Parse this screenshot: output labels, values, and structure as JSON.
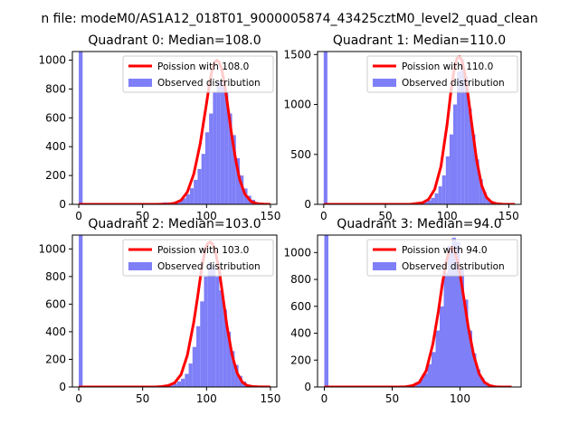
{
  "suptitle": "n file: modeM0/AS1A12_018T01_9000005874_43425cztM0_level2_quad_clean",
  "colors": {
    "fit": "#ff0000",
    "observed": "#7f7ff8",
    "axis": "#000000",
    "background": "#ffffff"
  },
  "chart_data": [
    {
      "type": "bar",
      "title": "Quadrant 0: Median=108.0",
      "xlim": [
        -5,
        155
      ],
      "ylim": [
        0,
        1060
      ],
      "xticks": [
        "0",
        "50",
        "100",
        "150"
      ],
      "xtick_values": [
        0,
        50,
        100,
        150
      ],
      "yticks": [
        "0",
        "200",
        "400",
        "600",
        "800",
        "1000"
      ],
      "ytick_values": [
        0,
        200,
        400,
        600,
        800,
        1000
      ],
      "legend": {
        "location": "upper right",
        "entries": [
          "Poission with 108.0",
          "Observed distribution"
        ]
      },
      "histogram": {
        "bins": [
          [
            0,
            3,
            1060
          ],
          [
            60,
            63,
            6
          ],
          [
            63,
            66,
            10
          ],
          [
            66,
            69,
            14
          ],
          [
            69,
            72,
            13
          ],
          [
            72,
            75,
            10
          ],
          [
            75,
            78,
            20
          ],
          [
            78,
            81,
            30
          ],
          [
            81,
            84,
            42
          ],
          [
            84,
            87,
            70
          ],
          [
            87,
            90,
            112
          ],
          [
            90,
            93,
            170
          ],
          [
            93,
            96,
            245
          ],
          [
            96,
            99,
            350
          ],
          [
            99,
            102,
            500
          ],
          [
            102,
            105,
            630
          ],
          [
            105,
            108,
            780
          ],
          [
            108,
            111,
            850
          ],
          [
            111,
            114,
            850
          ],
          [
            114,
            117,
            780
          ],
          [
            117,
            120,
            630
          ],
          [
            120,
            123,
            480
          ],
          [
            123,
            126,
            320
          ],
          [
            126,
            129,
            200
          ],
          [
            129,
            132,
            110
          ],
          [
            132,
            135,
            60
          ],
          [
            135,
            138,
            32
          ],
          [
            138,
            141,
            16
          ],
          [
            141,
            144,
            10
          ],
          [
            144,
            147,
            5
          ],
          [
            147,
            150,
            2
          ]
        ]
      },
      "fit_curve": {
        "median": 108.0,
        "x": [
          0,
          60,
          70,
          75,
          80,
          85,
          90,
          95,
          98,
          100,
          102,
          104,
          106,
          108,
          110,
          112,
          114,
          116,
          118,
          120,
          123,
          126,
          130,
          135,
          140,
          145,
          150
        ],
        "y": [
          0,
          0,
          2,
          8,
          28,
          85,
          210,
          420,
          590,
          700,
          820,
          920,
          985,
          1000,
          985,
          930,
          840,
          720,
          590,
          460,
          300,
          170,
          70,
          18,
          4,
          1,
          0
        ]
      }
    },
    {
      "type": "bar",
      "title": "Quadrant 1: Median=110.0",
      "xlim": [
        -5,
        160
      ],
      "ylim": [
        0,
        1530
      ],
      "xticks": [
        "0",
        "50",
        "100",
        "150"
      ],
      "xtick_values": [
        0,
        50,
        100,
        150
      ],
      "yticks": [
        "0",
        "500",
        "1000",
        "1500"
      ],
      "ytick_values": [
        0,
        500,
        1000,
        1500
      ],
      "legend": {
        "location": "upper right",
        "entries": [
          "Poission with 110.0",
          "Observed distribution"
        ]
      },
      "histogram": {
        "bins": [
          [
            0,
            3,
            1530
          ],
          [
            75,
            78,
            12
          ],
          [
            78,
            81,
            18
          ],
          [
            81,
            84,
            25
          ],
          [
            84,
            87,
            40
          ],
          [
            87,
            90,
            65
          ],
          [
            90,
            93,
            110
          ],
          [
            93,
            96,
            180
          ],
          [
            96,
            99,
            290
          ],
          [
            99,
            102,
            480
          ],
          [
            102,
            105,
            700
          ],
          [
            105,
            108,
            1000
          ],
          [
            108,
            111,
            1330
          ],
          [
            111,
            114,
            1450
          ],
          [
            114,
            117,
            1280
          ],
          [
            117,
            120,
            960
          ],
          [
            120,
            123,
            700
          ],
          [
            123,
            126,
            450
          ],
          [
            126,
            129,
            250
          ],
          [
            129,
            132,
            120
          ],
          [
            132,
            135,
            55
          ],
          [
            135,
            138,
            28
          ],
          [
            138,
            141,
            12
          ],
          [
            141,
            144,
            5
          ]
        ]
      },
      "fit_curve": {
        "median": 110.0,
        "x": [
          0,
          70,
          80,
          85,
          90,
          95,
          100,
          103,
          106,
          108,
          110,
          112,
          114,
          117,
          120,
          124,
          128,
          132,
          136,
          140,
          145,
          150,
          155
        ],
        "y": [
          0,
          0,
          15,
          50,
          150,
          380,
          800,
          1120,
          1370,
          1460,
          1480,
          1440,
          1330,
          1090,
          800,
          440,
          190,
          70,
          22,
          6,
          1,
          0,
          0
        ]
      }
    },
    {
      "type": "bar",
      "title": "Quadrant 2: Median=103.0",
      "xlim": [
        -5,
        155
      ],
      "ylim": [
        0,
        1100
      ],
      "xticks": [
        "0",
        "50",
        "100",
        "150"
      ],
      "xtick_values": [
        0,
        50,
        100,
        150
      ],
      "yticks": [
        "0",
        "200",
        "400",
        "600",
        "800",
        "1000"
      ],
      "ytick_values": [
        0,
        200,
        400,
        600,
        800,
        1000
      ],
      "legend": {
        "location": "upper right",
        "entries": [
          "Poission with 103.0",
          "Observed distribution"
        ]
      },
      "histogram": {
        "bins": [
          [
            0,
            3,
            1100
          ],
          [
            62,
            65,
            6
          ],
          [
            65,
            68,
            10
          ],
          [
            68,
            71,
            14
          ],
          [
            71,
            74,
            16
          ],
          [
            74,
            77,
            25
          ],
          [
            77,
            80,
            40
          ],
          [
            80,
            83,
            60
          ],
          [
            83,
            86,
            95
          ],
          [
            86,
            89,
            170
          ],
          [
            89,
            92,
            290
          ],
          [
            92,
            95,
            440
          ],
          [
            95,
            98,
            620
          ],
          [
            98,
            101,
            800
          ],
          [
            101,
            104,
            900
          ],
          [
            104,
            107,
            880
          ],
          [
            107,
            110,
            800
          ],
          [
            110,
            113,
            700
          ],
          [
            113,
            116,
            560
          ],
          [
            116,
            119,
            400
          ],
          [
            119,
            122,
            260
          ],
          [
            122,
            125,
            160
          ],
          [
            125,
            128,
            80
          ],
          [
            128,
            131,
            40
          ],
          [
            131,
            134,
            18
          ],
          [
            134,
            137,
            8
          ],
          [
            137,
            140,
            3
          ]
        ]
      },
      "fit_curve": {
        "median": 103.0,
        "x": [
          0,
          60,
          65,
          70,
          75,
          80,
          85,
          90,
          93,
          96,
          99,
          101,
          103,
          105,
          107,
          110,
          113,
          116,
          120,
          124,
          128,
          132,
          136,
          140,
          150
        ],
        "y": [
          0,
          0,
          3,
          10,
          30,
          90,
          230,
          470,
          650,
          850,
          1000,
          1040,
          1050,
          1030,
          980,
          840,
          640,
          440,
          230,
          100,
          35,
          10,
          3,
          1,
          0
        ]
      }
    },
    {
      "type": "bar",
      "title": "Quadrant 3: Median=94.0",
      "xlim": [
        -5,
        145
      ],
      "ylim": [
        0,
        1130
      ],
      "xticks": [
        "0",
        "50",
        "100"
      ],
      "xtick_values": [
        0,
        50,
        100
      ],
      "yticks": [
        "0",
        "200",
        "400",
        "600",
        "800",
        "1000"
      ],
      "ytick_values": [
        0,
        200,
        400,
        600,
        800,
        1000
      ],
      "legend": {
        "location": "upper right",
        "entries": [
          "Poission with 94.0",
          "Observed distribution"
        ]
      },
      "histogram": {
        "bins": [
          [
            0,
            3,
            1130
          ],
          [
            55,
            58,
            5
          ],
          [
            58,
            61,
            8
          ],
          [
            61,
            64,
            12
          ],
          [
            64,
            67,
            20
          ],
          [
            67,
            70,
            35
          ],
          [
            70,
            73,
            60
          ],
          [
            73,
            76,
            100
          ],
          [
            76,
            79,
            170
          ],
          [
            79,
            82,
            260
          ],
          [
            82,
            85,
            420
          ],
          [
            85,
            88,
            600
          ],
          [
            88,
            91,
            850
          ],
          [
            91,
            94,
            1050
          ],
          [
            94,
            97,
            1110
          ],
          [
            97,
            100,
            1080
          ],
          [
            100,
            103,
            880
          ],
          [
            103,
            106,
            650
          ],
          [
            106,
            109,
            420
          ],
          [
            109,
            112,
            250
          ],
          [
            112,
            115,
            130
          ],
          [
            115,
            118,
            65
          ],
          [
            118,
            121,
            30
          ],
          [
            121,
            124,
            12
          ],
          [
            124,
            127,
            5
          ]
        ]
      },
      "fit_curve": {
        "median": 94.0,
        "x": [
          0,
          55,
          60,
          65,
          70,
          75,
          80,
          84,
          87,
          90,
          92,
          94,
          96,
          98,
          100,
          103,
          106,
          110,
          114,
          118,
          122,
          126,
          130,
          138
        ],
        "y": [
          0,
          0,
          2,
          10,
          35,
          120,
          320,
          560,
          770,
          940,
          1010,
          1040,
          1010,
          940,
          840,
          650,
          450,
          240,
          100,
          35,
          10,
          2,
          0,
          0
        ]
      }
    }
  ]
}
